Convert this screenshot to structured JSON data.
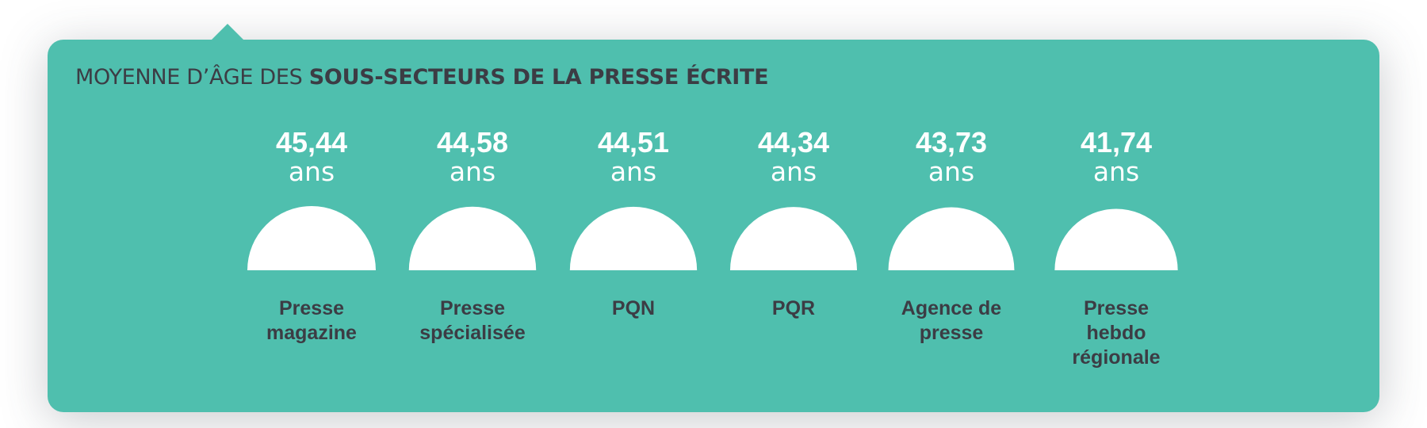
{
  "title_light": "MOYENNE D’ÂGE DES ",
  "title_bold": "SOUS-SECTEURS DE LA PRESSE ÉCRITE",
  "colors": {
    "background": "#4fbfae",
    "text_dark": "#3c3c44",
    "shape": "#ffffff"
  },
  "chart_data": {
    "type": "bar",
    "title": "MOYENNE D’ÂGE DES SOUS-SECTEURS DE LA PRESSE ÉCRITE",
    "unit": "ans",
    "categories": [
      "Presse magazine",
      "Presse spécialisée",
      "PQN",
      "PQR",
      "Agence de presse",
      "Presse hebdo régionale"
    ],
    "values": [
      45.44,
      44.58,
      44.51,
      44.34,
      43.73,
      41.74
    ],
    "value_labels": [
      "45,44",
      "44,58",
      "44,51",
      "44,34",
      "43,73",
      "41,74"
    ],
    "category_labels": [
      "Presse\nmagazine",
      "Presse\nspécialisée",
      "PQN",
      "PQR",
      "Agence de\npresse",
      "Presse\nhebdo\nrégionale"
    ]
  }
}
